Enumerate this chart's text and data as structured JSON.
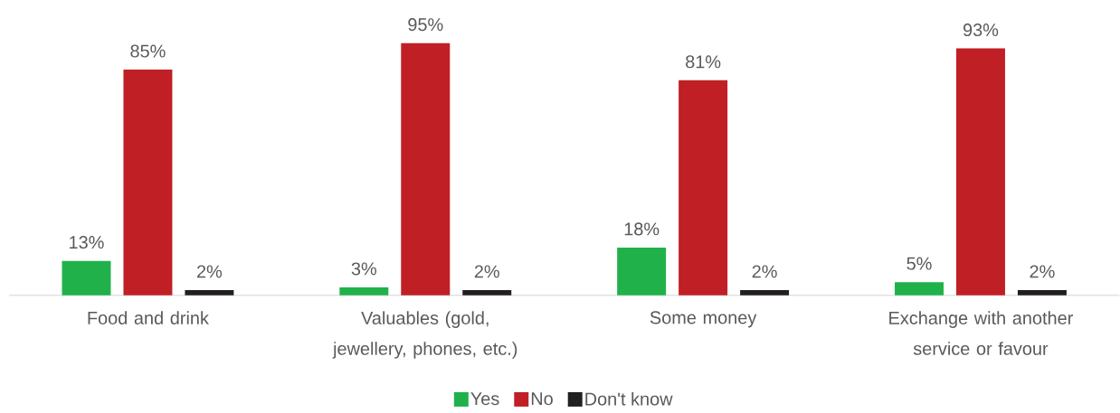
{
  "chart_data": {
    "type": "bar",
    "categories": [
      "Food and drink",
      "Valuables (gold, jewellery, phones, etc.)",
      "Some money",
      "Exchange with another service or favour"
    ],
    "series": [
      {
        "name": "Yes",
        "color": "#21b14b",
        "values": [
          13,
          3,
          18,
          5
        ],
        "value_labels": [
          "13%",
          "3%",
          "18%",
          "5%"
        ]
      },
      {
        "name": "No",
        "color": "#c01f25",
        "values": [
          85,
          95,
          81,
          93
        ],
        "value_labels": [
          "85%",
          "95%",
          "81%",
          "93%"
        ]
      },
      {
        "name": "Don't know",
        "color": "#231f20",
        "values": [
          2,
          2,
          2,
          2
        ],
        "value_labels": [
          "2%",
          "2%",
          "2%",
          "2%"
        ]
      }
    ],
    "legend": "bottom"
  }
}
